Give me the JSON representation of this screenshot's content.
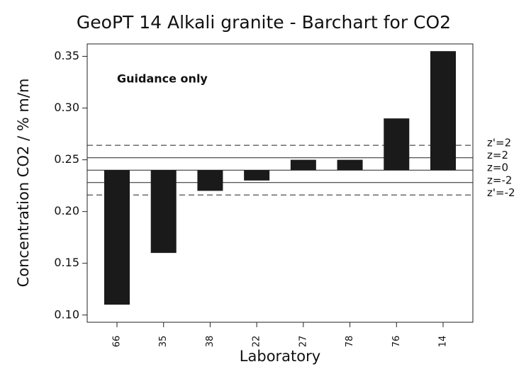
{
  "chart_data": {
    "type": "bar",
    "title": "GeoPT 14 Alkali granite - Barchart for CO2",
    "x_label": "Laboratory",
    "y_label": "Concentration CO2 / % m/m",
    "annotation": "Guidance only",
    "categories": [
      "66",
      "35",
      "38",
      "22",
      "27",
      "78",
      "76",
      "14"
    ],
    "values": [
      0.11,
      0.16,
      0.22,
      0.23,
      0.25,
      0.25,
      0.29,
      0.355
    ],
    "color": "#1a1a1a",
    "ylim": [
      0.093,
      0.362
    ],
    "yticks": [
      {
        "value": 0.1,
        "label": "0.10"
      },
      {
        "value": 0.15,
        "label": "0.15"
      },
      {
        "value": 0.2,
        "label": "0.20"
      },
      {
        "value": 0.25,
        "label": "0.25"
      },
      {
        "value": 0.3,
        "label": "0.30"
      },
      {
        "value": 0.35,
        "label": "0.35"
      }
    ],
    "reference_lines": [
      {
        "label": "z'=2",
        "value": 0.264,
        "style": "dashed"
      },
      {
        "label": "z=2",
        "value": 0.252,
        "style": "solid"
      },
      {
        "label": "z=0",
        "value": 0.24,
        "style": "solid"
      },
      {
        "label": "z=-2",
        "value": 0.228,
        "style": "solid"
      },
      {
        "label": "z'=-2",
        "value": 0.216,
        "style": "dashed"
      }
    ]
  }
}
